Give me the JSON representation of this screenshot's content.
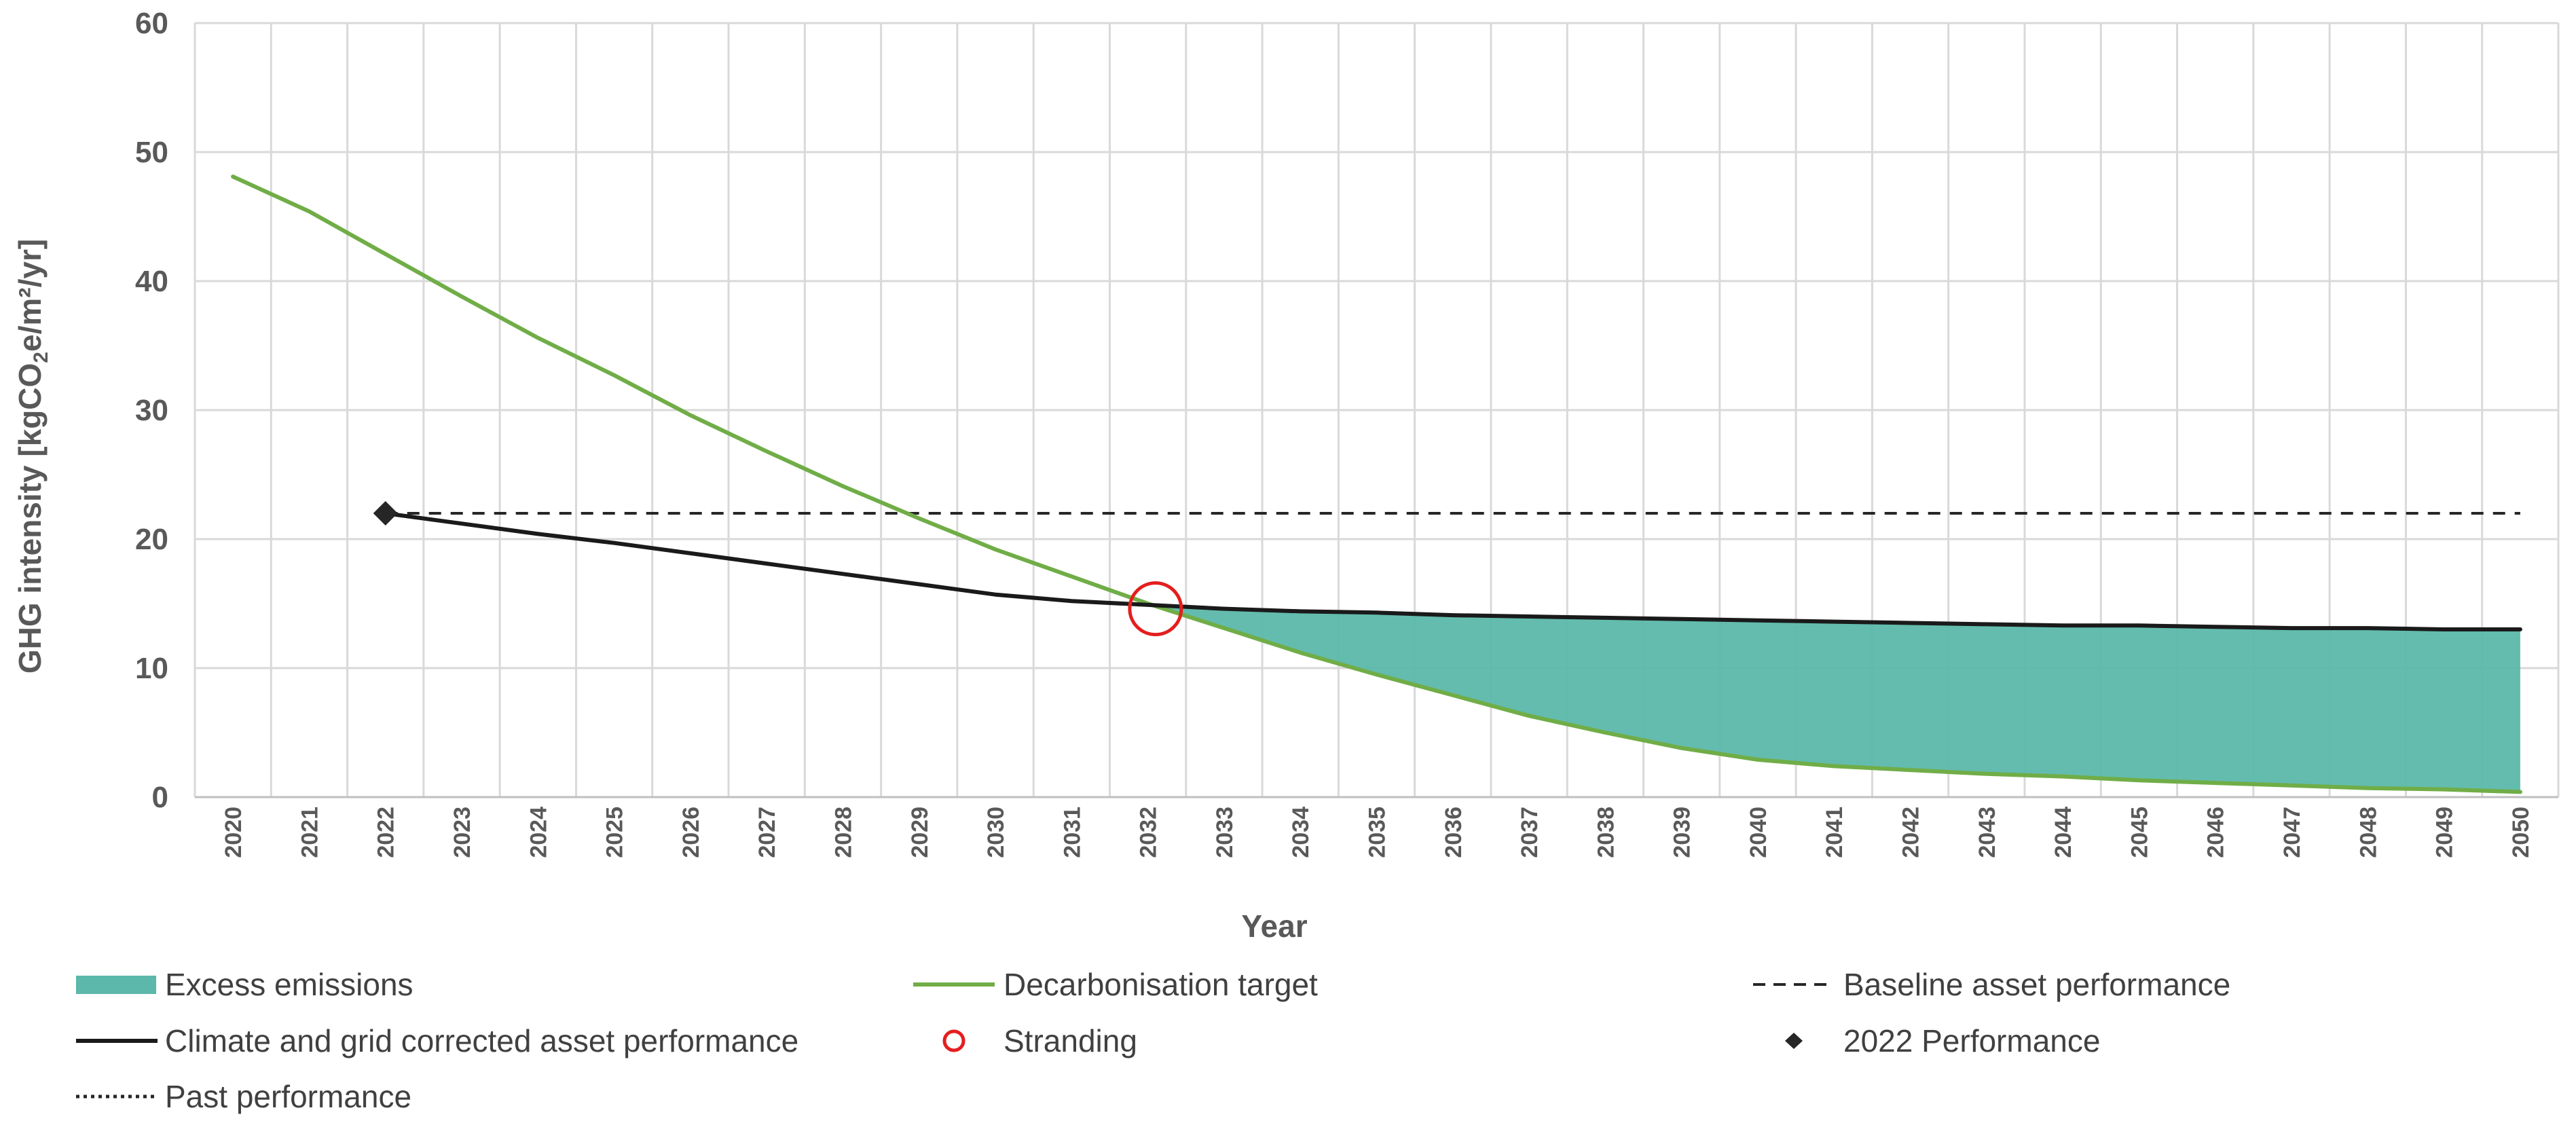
{
  "chart_data": {
    "type": "line",
    "title": "",
    "xlabel": "Year",
    "ylabel": {
      "prefix": "GHG intensity [kgCO",
      "sub": "2",
      "suffix": "e/m²/yr]"
    },
    "ylim": [
      0,
      60
    ],
    "yticks": [
      0,
      10,
      20,
      30,
      40,
      50,
      60
    ],
    "x": [
      2020,
      2021,
      2022,
      2023,
      2024,
      2025,
      2026,
      2027,
      2028,
      2029,
      2030,
      2031,
      2032,
      2033,
      2034,
      2035,
      2036,
      2037,
      2038,
      2039,
      2040,
      2041,
      2042,
      2043,
      2044,
      2045,
      2046,
      2047,
      2048,
      2049,
      2050
    ],
    "grid": true,
    "series": [
      {
        "name": "Decarbonisation target",
        "color": "#70AD47",
        "style": "solid",
        "x": [
          2020,
          2021,
          2022,
          2023,
          2024,
          2025,
          2026,
          2027,
          2028,
          2029,
          2030,
          2031,
          2032,
          2033,
          2034,
          2035,
          2036,
          2037,
          2038,
          2039,
          2040,
          2041,
          2042,
          2043,
          2044,
          2045,
          2046,
          2047,
          2048,
          2049,
          2050
        ],
        "values": [
          48.1,
          45.4,
          42.1,
          38.8,
          35.6,
          32.7,
          29.6,
          26.8,
          24.1,
          21.6,
          19.2,
          17.1,
          15.0,
          13.1,
          11.2,
          9.5,
          7.9,
          6.3,
          5.0,
          3.8,
          2.9,
          2.4,
          2.1,
          1.8,
          1.6,
          1.3,
          1.1,
          0.9,
          0.7,
          0.6,
          0.4
        ]
      },
      {
        "name": "Climate and grid corrected asset performance",
        "color": "#1A1A1A",
        "style": "solid",
        "x": [
          2022,
          2023,
          2024,
          2025,
          2026,
          2027,
          2028,
          2029,
          2030,
          2031,
          2032,
          2033,
          2034,
          2035,
          2036,
          2037,
          2038,
          2039,
          2040,
          2041,
          2042,
          2043,
          2044,
          2045,
          2046,
          2047,
          2048,
          2049,
          2050
        ],
        "values": [
          22.0,
          21.2,
          20.4,
          19.7,
          18.9,
          18.1,
          17.3,
          16.5,
          15.7,
          15.2,
          14.9,
          14.6,
          14.4,
          14.3,
          14.1,
          14.0,
          13.9,
          13.8,
          13.7,
          13.6,
          13.5,
          13.4,
          13.3,
          13.3,
          13.2,
          13.1,
          13.1,
          13.0,
          13.0
        ]
      },
      {
        "name": "Baseline asset performance",
        "color": "#262626",
        "style": "dashed",
        "x": [
          2022,
          2050
        ],
        "values": [
          22.0,
          22.0
        ]
      },
      {
        "name": "Past performance",
        "color": "#262626",
        "style": "dotted",
        "x": [],
        "values": []
      }
    ],
    "excess_area": {
      "name": "Excess emissions",
      "color": "#5BB8AA",
      "from_x": 2032,
      "upper": "Climate and grid corrected asset performance",
      "lower": "Decarbonisation target"
    },
    "markers": [
      {
        "name": "Stranding",
        "shape": "circle",
        "color": "#E41E1E",
        "x": 2032.1,
        "y": 14.6
      },
      {
        "name": "2022 Performance",
        "shape": "diamond",
        "color": "#262626",
        "x": 2022,
        "y": 22.0
      }
    ],
    "legend": {
      "placement": "bottom",
      "entries": [
        {
          "label": "Excess emissions",
          "swatch": "area",
          "color": "#5BB8AA"
        },
        {
          "label": "Decarbonisation target",
          "swatch": "line",
          "color": "#70AD47"
        },
        {
          "label": "Baseline asset performance",
          "swatch": "dashed",
          "color": "#262626"
        },
        {
          "label": "Climate and grid corrected asset performance",
          "swatch": "line",
          "color": "#1A1A1A"
        },
        {
          "label": "Stranding",
          "swatch": "circle",
          "color": "#E41E1E"
        },
        {
          "label": "2022 Performance",
          "swatch": "diamond",
          "color": "#262626"
        },
        {
          "label": "Past performance",
          "swatch": "dotted",
          "color": "#262626"
        }
      ]
    }
  }
}
